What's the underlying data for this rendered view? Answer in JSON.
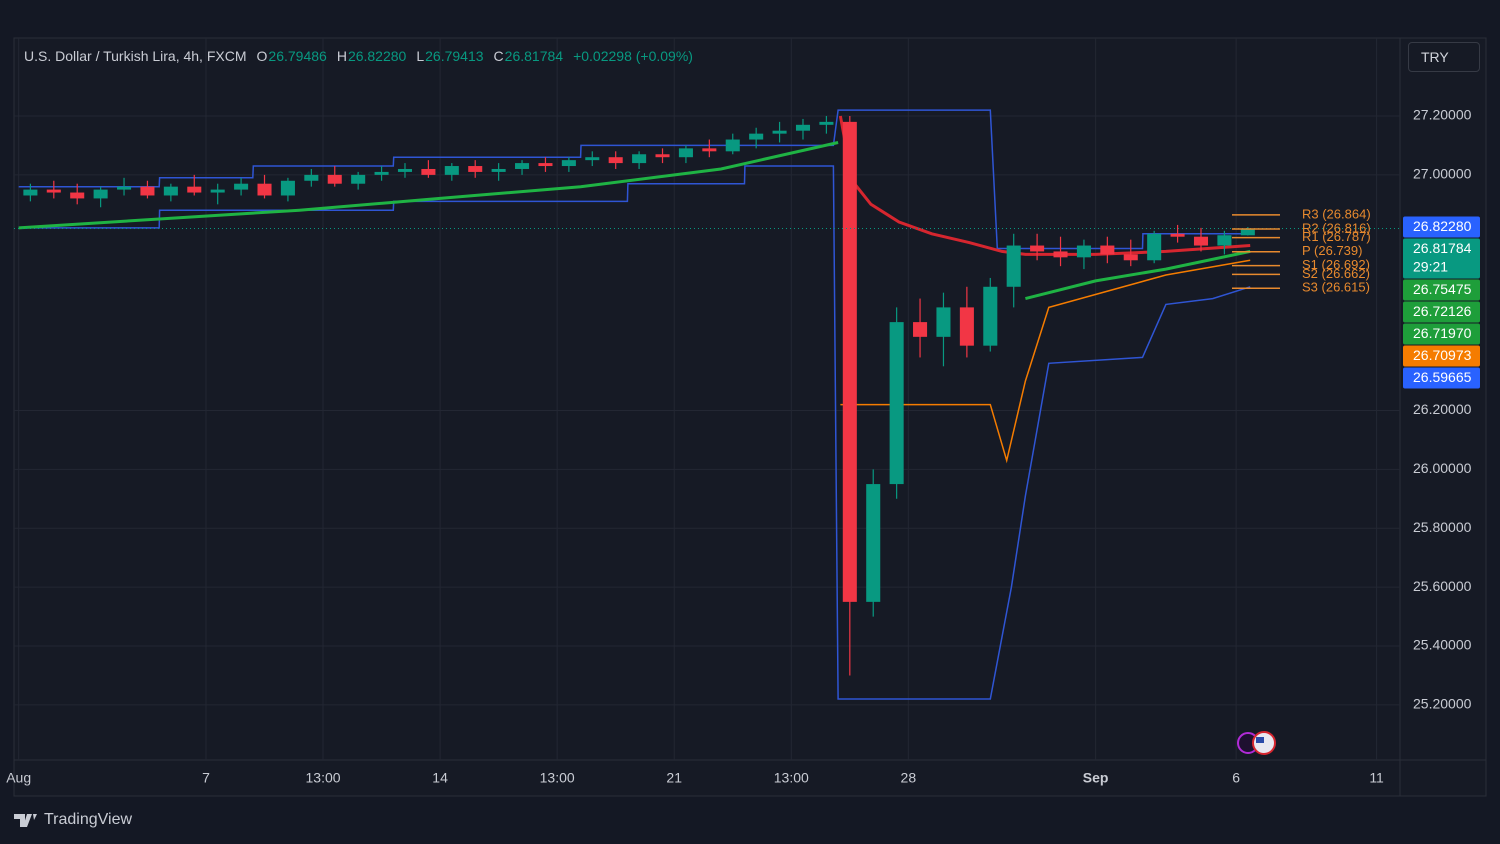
{
  "chart_data": {
    "type": "candlestick",
    "title": "U.S. Dollar / Turkish Lira, 4h, FXCM",
    "legend": {
      "items": [
        {
          "key": "O",
          "value": "26.79486"
        },
        {
          "key": "H",
          "value": "26.82280"
        },
        {
          "key": "L",
          "value": "26.79413"
        },
        {
          "key": "C",
          "value": "26.81784"
        }
      ],
      "change": "+0.02298 (+0.09%)"
    },
    "currency": "TRY",
    "up_color": "#089981",
    "down_color": "#f23645",
    "x": [
      0.25,
      0.75,
      1.25,
      1.75,
      2.25,
      2.75,
      3.25,
      3.75,
      4.25,
      4.75,
      5.25,
      5.75,
      6.25,
      6.75,
      7.25,
      7.75,
      8.25,
      8.75,
      9.25,
      9.75,
      10.25,
      10.75,
      11.25,
      11.75,
      12.25,
      12.75,
      13.25,
      13.75,
      14.25,
      14.75,
      15.25,
      15.75,
      16.25,
      16.75,
      17.25,
      17.75,
      18.25,
      18.75,
      19.25,
      19.75,
      20.25,
      20.75,
      21.25,
      21.75,
      22.25,
      22.75,
      23.25,
      23.75,
      24.25,
      24.75,
      25.25,
      25.75,
      26.25
    ],
    "open": [
      26.93,
      26.95,
      26.94,
      26.92,
      26.95,
      26.96,
      26.93,
      26.96,
      26.94,
      26.95,
      26.97,
      26.93,
      26.98,
      27.0,
      26.97,
      27.0,
      27.01,
      27.02,
      27.0,
      27.03,
      27.01,
      27.02,
      27.04,
      27.03,
      27.05,
      27.06,
      27.04,
      27.07,
      27.06,
      27.09,
      27.08,
      27.12,
      27.14,
      27.15,
      27.17,
      27.18,
      25.55,
      25.95,
      26.5,
      26.45,
      26.55,
      26.42,
      26.62,
      26.76,
      26.74,
      26.72,
      26.76,
      26.73,
      26.71,
      26.8,
      26.79,
      26.76,
      26.79486
    ],
    "high": [
      26.97,
      26.98,
      26.97,
      26.96,
      26.99,
      26.98,
      26.97,
      27.0,
      26.97,
      26.99,
      27.0,
      26.99,
      27.02,
      27.03,
      27.01,
      27.03,
      27.04,
      27.05,
      27.04,
      27.05,
      27.04,
      27.05,
      27.06,
      27.06,
      27.08,
      27.08,
      27.08,
      27.09,
      27.1,
      27.12,
      27.14,
      27.16,
      27.18,
      27.19,
      27.2,
      27.2,
      26.0,
      26.55,
      26.58,
      26.6,
      26.62,
      26.65,
      26.8,
      26.8,
      26.79,
      26.78,
      26.79,
      26.78,
      26.81,
      26.83,
      26.82,
      26.81,
      26.8228
    ],
    "low": [
      26.91,
      26.92,
      26.9,
      26.89,
      26.93,
      26.92,
      26.91,
      26.93,
      26.9,
      26.93,
      26.92,
      26.91,
      26.96,
      26.96,
      26.95,
      26.98,
      26.99,
      26.99,
      26.98,
      26.99,
      26.98,
      27.0,
      27.01,
      27.01,
      27.03,
      27.02,
      27.02,
      27.04,
      27.04,
      27.06,
      27.07,
      27.09,
      27.11,
      27.12,
      27.14,
      25.3,
      25.5,
      25.9,
      26.38,
      26.35,
      26.38,
      26.4,
      26.55,
      26.71,
      26.69,
      26.68,
      26.7,
      26.69,
      26.7,
      26.77,
      26.74,
      26.73,
      26.79413
    ],
    "close": [
      26.95,
      26.94,
      26.92,
      26.95,
      26.96,
      26.93,
      26.96,
      26.94,
      26.95,
      26.97,
      26.93,
      26.98,
      27.0,
      26.97,
      27.0,
      27.01,
      27.02,
      27.0,
      27.03,
      27.01,
      27.02,
      27.04,
      27.03,
      27.05,
      27.06,
      27.04,
      27.07,
      27.06,
      27.09,
      27.08,
      27.12,
      27.14,
      27.15,
      27.17,
      27.18,
      25.55,
      25.95,
      26.5,
      26.45,
      26.55,
      26.42,
      26.62,
      26.76,
      26.74,
      26.72,
      26.76,
      26.73,
      26.71,
      26.8,
      26.79,
      26.76,
      26.795,
      26.81784
    ],
    "overlays": [
      {
        "color": "#2f55d4",
        "width": 1.5,
        "x": [
          0,
          3,
          3.01,
          5,
          5.01,
          8,
          8.01,
          12,
          12.01,
          17.4,
          17.5,
          20.75,
          20.9,
          24,
          24.01,
          26.3
        ],
        "values": [
          26.96,
          26.96,
          26.99,
          26.99,
          27.03,
          27.03,
          27.06,
          27.06,
          27.1,
          27.1,
          27.22,
          27.22,
          26.75,
          26.75,
          26.8,
          26.8
        ]
      },
      {
        "color": "#2f55d4",
        "width": 1.5,
        "x": [
          0,
          3,
          3.01,
          8,
          8.01,
          13,
          13.01,
          15.5,
          15.51,
          17.4,
          17.5,
          20.75,
          21.2,
          21.5,
          22,
          24,
          24.5,
          25.5,
          26.3
        ],
        "values": [
          26.82,
          26.82,
          26.88,
          26.88,
          26.91,
          26.91,
          26.97,
          26.97,
          27.03,
          27.03,
          25.22,
          25.22,
          25.6,
          25.91,
          26.36,
          26.38,
          26.56,
          26.58,
          26.62
        ]
      },
      {
        "color": "#1fb344",
        "width": 3,
        "x": [
          0,
          3,
          6,
          9,
          12,
          15,
          17.5,
          18,
          21.5,
          23,
          24.5,
          26.3
        ],
        "values": [
          26.82,
          26.85,
          26.88,
          26.92,
          26.96,
          27.02,
          27.11,
          null,
          26.58,
          26.64,
          26.68,
          26.74
        ]
      },
      {
        "color": "#d6262f",
        "width": 3,
        "x": [
          17.55,
          17.8,
          18.2,
          18.8,
          19.5,
          20.3,
          21,
          21.5,
          23,
          24.5,
          26.3
        ],
        "values": [
          27.2,
          26.98,
          26.9,
          26.84,
          26.8,
          26.77,
          26.74,
          26.73,
          26.73,
          26.74,
          26.76
        ]
      },
      {
        "color": "#f57c00",
        "width": 1.5,
        "x": [
          17.55,
          20.75,
          21.1,
          21.5,
          22,
          24.5,
          26.3
        ],
        "values": [
          26.22,
          26.22,
          26.03,
          26.3,
          26.55,
          26.66,
          26.71
        ]
      }
    ],
    "pivot_color": "#e88a2e",
    "pivots": [
      {
        "value": 26.864,
        "label": "R3 (26.864)"
      },
      {
        "value": 26.816,
        "label": "R2 (26.816)"
      },
      {
        "value": 26.787,
        "label": "R1 (26.787)"
      },
      {
        "value": 26.739,
        "label": "P (26.739)"
      },
      {
        "value": 26.692,
        "label": "S1 (26.692)"
      },
      {
        "value": 26.662,
        "label": "S2 (26.662)"
      },
      {
        "value": 26.615,
        "label": "S3 (26.615)"
      }
    ],
    "price_labels": [
      {
        "value": 26.8228,
        "label": "26.82280",
        "color": "#2962ff"
      },
      {
        "value": 26.81784,
        "label": "26.81784",
        "color": "#089981",
        "countdown": "29:21"
      },
      {
        "value": 26.75475,
        "label": "26.75475",
        "color": "#1e9e3a"
      },
      {
        "value": 26.72126,
        "label": "26.72126",
        "color": "#1e9e3a"
      },
      {
        "value": 26.7197,
        "label": "26.71970",
        "color": "#1e9e3a"
      },
      {
        "value": 26.70973,
        "label": "26.70973",
        "color": "#f57c00"
      },
      {
        "value": 26.59665,
        "label": "26.59665",
        "color": "#2962ff"
      }
    ],
    "xlim": [
      -0.1,
      29.5
    ],
    "xticks": [
      {
        "value": 0,
        "label": "Aug"
      },
      {
        "value": 4,
        "label": "7"
      },
      {
        "value": 6.5,
        "label": "13:00"
      },
      {
        "value": 9,
        "label": "14"
      },
      {
        "value": 11.5,
        "label": "13:00"
      },
      {
        "value": 14,
        "label": "21"
      },
      {
        "value": 16.5,
        "label": "13:00"
      },
      {
        "value": 19,
        "label": "28"
      },
      {
        "value": 23,
        "label": "Sep"
      },
      {
        "value": 26,
        "label": "6"
      },
      {
        "value": 29,
        "label": "11"
      }
    ],
    "ylim": [
      25.013,
      27.458
    ],
    "yticks": [
      {
        "value": 25.2,
        "label": "25.20000"
      },
      {
        "value": 25.4,
        "label": "25.40000"
      },
      {
        "value": 25.6,
        "label": "25.60000"
      },
      {
        "value": 25.8,
        "label": "25.80000"
      },
      {
        "value": 26.0,
        "label": "26.00000"
      },
      {
        "value": 26.2,
        "label": "26.20000"
      },
      {
        "value": 27.0,
        "label": "27.00000"
      },
      {
        "value": 27.2,
        "label": "27.20000"
      }
    ],
    "grid": true,
    "brand": "TradingView"
  }
}
